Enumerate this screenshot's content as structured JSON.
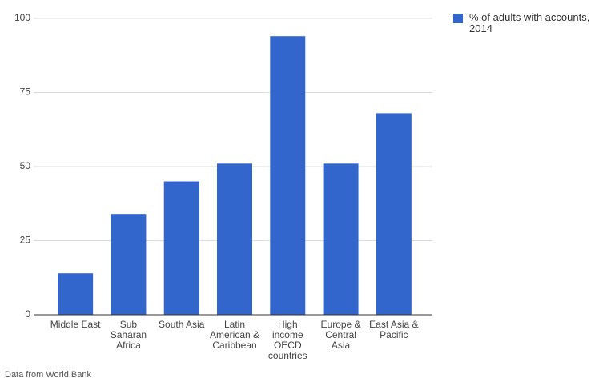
{
  "chart_data": {
    "type": "bar",
    "categories": [
      "Middle East",
      "Sub Saharan Africa",
      "South Asia",
      "Latin American & Caribbean",
      "High income OECD countries",
      "Europe & Central Asia",
      "East Asia & Pacific"
    ],
    "series": [
      {
        "name": "% of adults with accounts, 2014",
        "color": "#3366cc",
        "values": [
          14,
          34,
          45,
          51,
          94,
          51,
          68
        ]
      }
    ],
    "ylim": [
      0,
      100
    ],
    "yticks": [
      0,
      25,
      50,
      75,
      100
    ],
    "grid": true,
    "legend": "right",
    "source": "Data from World Bank"
  }
}
